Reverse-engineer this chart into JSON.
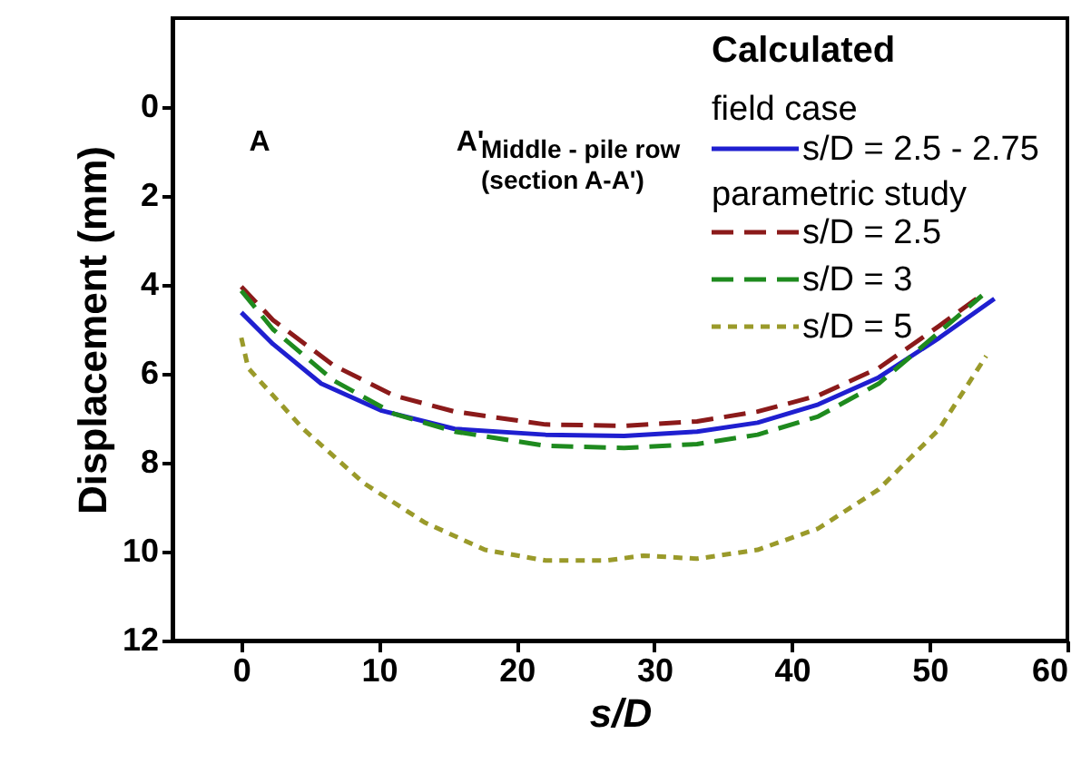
{
  "chart_data": {
    "type": "line",
    "xlabel": "s/D",
    "ylabel": "Displacement (mm)",
    "xlim": [
      -5,
      60
    ],
    "xticks": [
      0,
      10,
      20,
      30,
      40,
      50,
      60
    ],
    "ylim": [
      12,
      -2
    ],
    "yticks": [
      0,
      2,
      4,
      6,
      8,
      10,
      12
    ],
    "grid": false,
    "legend": "top right",
    "legend_title": "Calculated",
    "marker": "none",
    "annotations": [
      "field case",
      "parametric study",
      "A",
      "A'",
      "Middle - pile row\n(section A-A')"
    ],
    "series": [
      {
        "name": "s/D = 2.5 - 2.75",
        "color": "#1f1fd0",
        "line_style": "solid",
        "x": [
          0,
          2.3,
          5.8,
          10.2,
          15.5,
          22.1,
          27.8,
          33.1,
          37.5,
          41.9,
          46.3,
          50.7,
          54.7
        ],
        "values": [
          4.62,
          5.33,
          6.22,
          6.83,
          7.24,
          7.37,
          7.4,
          7.3,
          7.1,
          6.69,
          6.08,
          5.19,
          4.31
        ]
      },
      {
        "name": "s/D = 2.5",
        "color": "#8b1a1a",
        "line_style": "dashed",
        "x": [
          0,
          2.3,
          6.7,
          11.1,
          15.5,
          22.1,
          27.8,
          33.1,
          37.5,
          41.9,
          46.3,
          50.7,
          53.4
        ],
        "values": [
          4.04,
          4.79,
          5.81,
          6.49,
          6.85,
          7.14,
          7.17,
          7.07,
          6.85,
          6.49,
          5.87,
          4.92,
          4.31
        ]
      },
      {
        "name": "s/D =  3",
        "color": "#1e8a1e",
        "line_style": "dashed",
        "x": [
          0,
          2.3,
          6.7,
          11.1,
          15.5,
          22.1,
          27.8,
          33.1,
          37.5,
          41.9,
          46.3,
          50.7,
          53.8
        ],
        "values": [
          4.13,
          5.0,
          6.15,
          6.9,
          7.3,
          7.62,
          7.67,
          7.58,
          7.37,
          6.96,
          6.22,
          5.06,
          4.24
        ]
      },
      {
        "name": "s/D =  5",
        "color": "#9a9a2a",
        "line_style": "dotted",
        "x": [
          0,
          0.5,
          4.5,
          8.9,
          13.3,
          17.7,
          22.1,
          26.5,
          29.2,
          33.1,
          37.5,
          41.9,
          46.3,
          50.7,
          54.1
        ],
        "values": [
          5.19,
          5.87,
          7.24,
          8.46,
          9.34,
          9.96,
          10.2,
          10.2,
          10.09,
          10.16,
          9.96,
          9.48,
          8.6,
          7.24,
          5.6
        ]
      }
    ]
  }
}
